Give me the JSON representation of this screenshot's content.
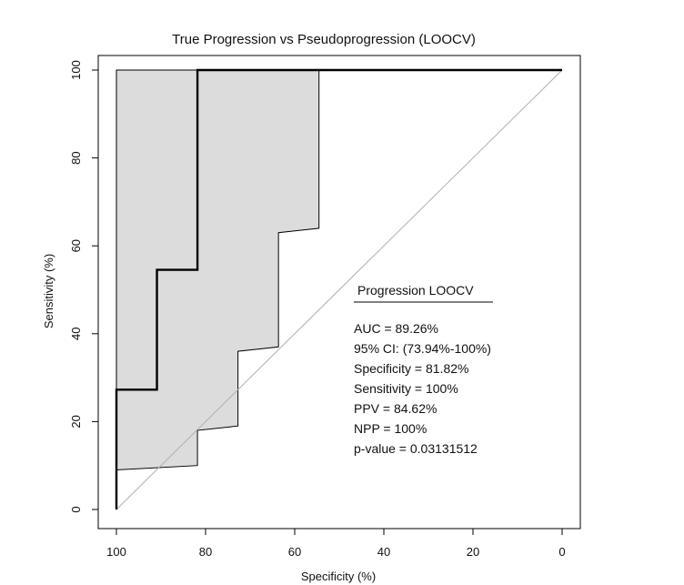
{
  "chart_data": {
    "type": "line",
    "title": "True Progression vs Pseudoprogression  (LOOCV)",
    "xlabel": "Specificity (%)",
    "ylabel": "Sensitivity (%)",
    "xlim": [
      100,
      0
    ],
    "ylim": [
      0,
      100
    ],
    "x_ticks": [
      100,
      80,
      60,
      40,
      20,
      0
    ],
    "y_ticks": [
      0,
      20,
      40,
      60,
      80,
      100
    ],
    "grid": false,
    "series": [
      {
        "name": "ROC curve",
        "color": "#000000",
        "x": [
          100,
          100,
          90.91,
          90.91,
          81.82,
          81.82,
          0
        ],
        "y": [
          0,
          27.27,
          27.27,
          54.55,
          54.55,
          100,
          100
        ]
      },
      {
        "name": "95% CI band",
        "color": "#dcdcdc",
        "upper": {
          "x": [
            100,
            100,
            54.55,
            54.55,
            63.64,
            63.64,
            72.73,
            72.73,
            81.82,
            81.82,
            100
          ],
          "y": [
            9,
            100,
            100,
            64,
            63,
            37,
            36,
            19,
            18,
            10,
            9
          ]
        }
      },
      {
        "name": "Chance line",
        "color": "#b0b0b0",
        "x": [
          100,
          0
        ],
        "y": [
          0,
          100
        ]
      }
    ],
    "annotation": {
      "heading": "Progression LOOCV",
      "lines": [
        "AUC = 89.26%",
        "95% CI: (73.94%-100%)",
        "Specificity =  81.82%",
        "Sensitivity = 100%",
        "PPV = 84.62%",
        "NPP = 100%",
        "p-value =  0.03131512"
      ]
    }
  }
}
